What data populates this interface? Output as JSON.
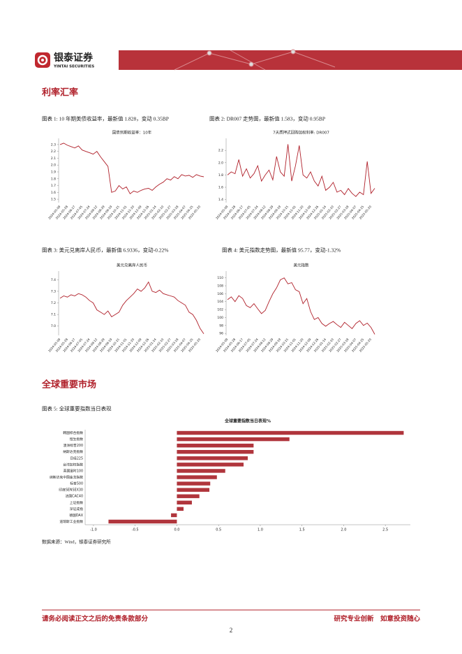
{
  "header": {
    "logo_cn": "银泰证券",
    "logo_en": "YINTAI SECURITIES"
  },
  "sections": [
    {
      "title": "利率汇率"
    },
    {
      "title": "全球重要市场"
    }
  ],
  "captions": [
    "图表 1: 10 年期美债收益率，最新值 1.828，变动 0.35BP",
    "图表 2: DR007 走势图，最新值 1.583，变动 0.95BP",
    "图表 3: 美元兑离岸人民币，最新值 6.9336，变动-0.22%",
    "图表 4: 美元指数走势图，最新值 95.77，变动-1.32%",
    "图表 5: 全球重要指数当日表现"
  ],
  "source": "数据来源：Wind，银泰证券研究所",
  "footer": {
    "left": "请务必阅读正文之后的免责条款部分",
    "right": "研究专业创新　如意投资随心",
    "page": "2"
  },
  "chart_data": [
    {
      "type": "line",
      "title": "国债到期收益率：10年",
      "color": "#b0202a",
      "categories": [
        "2024-05-09",
        null,
        "2024-05-28",
        null,
        "2024-06-17",
        null,
        "2024-07-05",
        null,
        "2024-07-24",
        null,
        "2024-08-12",
        null,
        "2024-08-29",
        null,
        "2024-09-19",
        null,
        "2024-10-15",
        null,
        "2024-11-01",
        null,
        "2024-11-20",
        null,
        "2024-12-09",
        null,
        "2024-12-26",
        null,
        "2025-01-14",
        null,
        "2025-02-10",
        null,
        "2025-02-27",
        null,
        "2025-03-18",
        null,
        "2025-04-07",
        null,
        "2025-04-25",
        null,
        "2025-05-20",
        null
      ],
      "values": [
        2.3,
        2.32,
        2.29,
        2.27,
        2.25,
        2.28,
        2.22,
        2.2,
        2.18,
        2.16,
        2.2,
        2.12,
        2.05,
        1.98,
        1.6,
        1.62,
        1.7,
        1.65,
        1.68,
        1.58,
        1.62,
        1.6,
        1.63,
        1.65,
        1.66,
        1.63,
        1.68,
        1.72,
        1.75,
        1.8,
        1.78,
        1.83,
        1.8,
        1.86,
        1.84,
        1.85,
        1.82,
        1.86,
        1.84,
        1.828
      ],
      "ylim": [
        1.45,
        2.35
      ],
      "yticks": [
        1.5,
        1.6,
        1.7,
        1.8,
        1.9,
        {
          "value": 2.0,
          "label": "2.0"
        },
        2.1,
        2.2,
        2.3
      ]
    },
    {
      "type": "line",
      "title": "7天质押式回购加权利率: DR007",
      "color": "#b0202a",
      "categories": [
        "2024-05-09",
        null,
        "2024-05-28",
        null,
        "2024-06-17",
        null,
        "2024-07-05",
        null,
        "2024-07-24",
        null,
        "2024-08-12",
        null,
        "2024-08-29",
        null,
        "2024-09-19",
        null,
        "2024-10-15",
        null,
        "2024-11-01",
        null,
        "2024-11-20",
        null,
        "2024-12-09",
        null,
        "2024-12-26",
        null,
        "2025-01-14",
        null,
        "2025-02-10",
        null,
        "2025-02-27",
        null,
        "2025-03-18",
        null,
        "2025-04-07",
        null,
        "2025-04-25",
        null,
        "2025-05-20",
        null
      ],
      "values": [
        1.8,
        1.85,
        1.82,
        2.05,
        1.78,
        1.9,
        1.75,
        1.82,
        1.95,
        1.7,
        1.8,
        1.88,
        1.72,
        2.1,
        1.85,
        1.78,
        2.3,
        1.7,
        1.95,
        2.28,
        1.8,
        1.75,
        1.85,
        1.7,
        1.62,
        1.78,
        1.55,
        1.6,
        1.68,
        1.52,
        1.55,
        1.48,
        1.58,
        1.5,
        1.45,
        1.52,
        1.48,
        2.02,
        1.5,
        1.583
      ],
      "ylim": [
        1.35,
        2.35
      ],
      "yticks": [
        1.4,
        1.6,
        1.8,
        {
          "value": 2.0,
          "label": "2.0"
        },
        2.2
      ]
    },
    {
      "type": "line",
      "title": "美元兑离岸人民币",
      "color": "#b0202a",
      "categories": [
        "2024-05-09",
        null,
        "2024-05-28",
        null,
        "2024-06-17",
        null,
        "2024-07-05",
        null,
        "2024-07-24",
        null,
        "2024-08-12",
        null,
        "2024-08-29",
        null,
        "2024-09-19",
        null,
        "2024-10-15",
        null,
        "2024-11-01",
        null,
        "2024-11-20",
        null,
        "2024-12-09",
        null,
        "2024-12-26",
        null,
        "2025-01-14",
        null,
        "2025-02-10",
        null,
        "2025-02-27",
        null,
        "2025-03-18",
        null,
        "2025-04-07",
        null,
        "2025-04-25",
        null,
        "2025-05-20",
        null
      ],
      "values": [
        7.24,
        7.26,
        7.25,
        7.27,
        7.26,
        7.28,
        7.27,
        7.25,
        7.22,
        7.2,
        7.14,
        7.12,
        7.1,
        7.13,
        7.08,
        7.1,
        7.12,
        7.18,
        7.22,
        7.25,
        7.28,
        7.32,
        7.3,
        7.33,
        7.38,
        7.3,
        7.29,
        7.31,
        7.28,
        7.27,
        7.26,
        7.25,
        7.22,
        7.2,
        7.18,
        7.12,
        7.1,
        7.05,
        6.98,
        6.9336
      ],
      "ylim": [
        6.92,
        7.45
      ],
      "yticks": [
        {
          "value": 7.0,
          "label": "7.0"
        },
        7.1,
        7.2,
        7.3,
        7.4
      ]
    },
    {
      "type": "line",
      "title": "美元指数",
      "color": "#b0202a",
      "categories": [
        "2024-05-09",
        null,
        "2024-05-28",
        null,
        "2024-06-17",
        null,
        "2024-07-05",
        null,
        "2024-07-24",
        null,
        "2024-08-12",
        null,
        "2024-08-29",
        null,
        "2024-09-19",
        null,
        "2024-10-15",
        null,
        "2024-11-01",
        null,
        "2024-11-20",
        null,
        "2024-12-09",
        null,
        "2024-12-26",
        null,
        "2025-01-14",
        null,
        "2025-02-10",
        null,
        "2025-02-27",
        null,
        "2025-03-18",
        null,
        "2025-04-07",
        null,
        "2025-04-25",
        null,
        "2025-05-20",
        null
      ],
      "values": [
        104.5,
        105.2,
        104.0,
        105.5,
        104.8,
        103.0,
        102.5,
        103.5,
        102.2,
        101.0,
        101.8,
        104.0,
        106.0,
        107.5,
        109.5,
        110.0,
        108.5,
        108.8,
        107.0,
        106.5,
        103.5,
        104.8,
        101.5,
        99.5,
        100.0,
        98.5,
        97.8,
        98.5,
        99.0,
        98.2,
        97.5,
        98.8,
        98.0,
        97.2,
        98.5,
        99.2,
        98.0,
        98.6,
        97.5,
        95.77
      ],
      "ylim": [
        95.5,
        111
      ],
      "yticks": [
        96,
        98,
        100,
        102,
        104,
        106,
        108,
        110
      ]
    },
    {
      "type": "bar",
      "title": "全球重要指数当日表现%",
      "color": "#b0353c",
      "categories": [
        "韩国综合指数",
        "恒生指数",
        "澳洲标普200",
        "纳斯达克指数",
        "日经225",
        "台湾加权指数",
        "英国富时100",
        "纳斯达克中国金龙指数",
        "标普500",
        "印度SENSEX30",
        "法国CAC40",
        "上证指数",
        "深证成指",
        "德国DAX",
        "道琼斯工业指数"
      ],
      "values": [
        2.72,
        1.35,
        0.92,
        0.92,
        0.85,
        0.8,
        0.58,
        0.48,
        0.4,
        0.39,
        0.27,
        0.18,
        0.08,
        -0.07,
        -0.82
      ],
      "xlim": [
        -1.1,
        2.8
      ],
      "xticks": [
        {
          "value": -1.0,
          "label": "-1.0"
        },
        -0.5,
        {
          "value": 0.0,
          "label": "0.0"
        },
        0.5,
        {
          "value": 1.0,
          "label": "1.0"
        },
        1.5,
        {
          "value": 2.0,
          "label": "2.0"
        },
        2.5
      ]
    }
  ]
}
